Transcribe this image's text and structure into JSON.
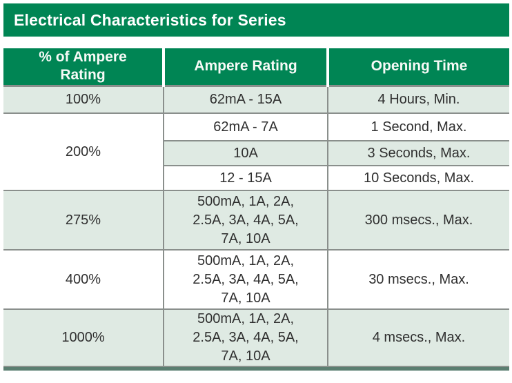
{
  "title": "Electrical Characteristics for Series",
  "colors": {
    "header_green": "#008554",
    "row_shade": "#dfeae3",
    "border_gray": "#8a8f8c",
    "bottom_bar": "#5b7f71",
    "body_text": "#2f2f2f",
    "header_text": "#ffffff"
  },
  "table": {
    "headers": [
      {
        "label": "% of Ampere Rating"
      },
      {
        "label": "Ampere Rating"
      },
      {
        "label": "Opening Time"
      }
    ],
    "groups": [
      {
        "percent": "100%",
        "rows": [
          {
            "rating": "62mA - 15A",
            "time": "4 Hours, Min."
          }
        ]
      },
      {
        "percent": "200%",
        "rows": [
          {
            "rating": "62mA - 7A",
            "time": "1 Second, Max."
          },
          {
            "rating": "10A",
            "time": "3 Seconds, Max."
          },
          {
            "rating": "12 - 15A",
            "time": "10 Seconds, Max."
          }
        ]
      },
      {
        "percent": "275%",
        "rows": [
          {
            "rating": "500mA, 1A, 2A, 2.5A, 3A, 4A, 5A, 7A, 10A",
            "time": "300 msecs., Max."
          }
        ]
      },
      {
        "percent": "400%",
        "rows": [
          {
            "rating": "500mA, 1A, 2A, 2.5A, 3A, 4A, 5A, 7A, 10A",
            "time": "30 msecs., Max."
          }
        ]
      },
      {
        "percent": "1000%",
        "rows": [
          {
            "rating": "500mA, 1A, 2A, 2.5A, 3A, 4A, 5A, 7A, 10A",
            "time": "4 msecs., Max."
          }
        ]
      }
    ]
  }
}
